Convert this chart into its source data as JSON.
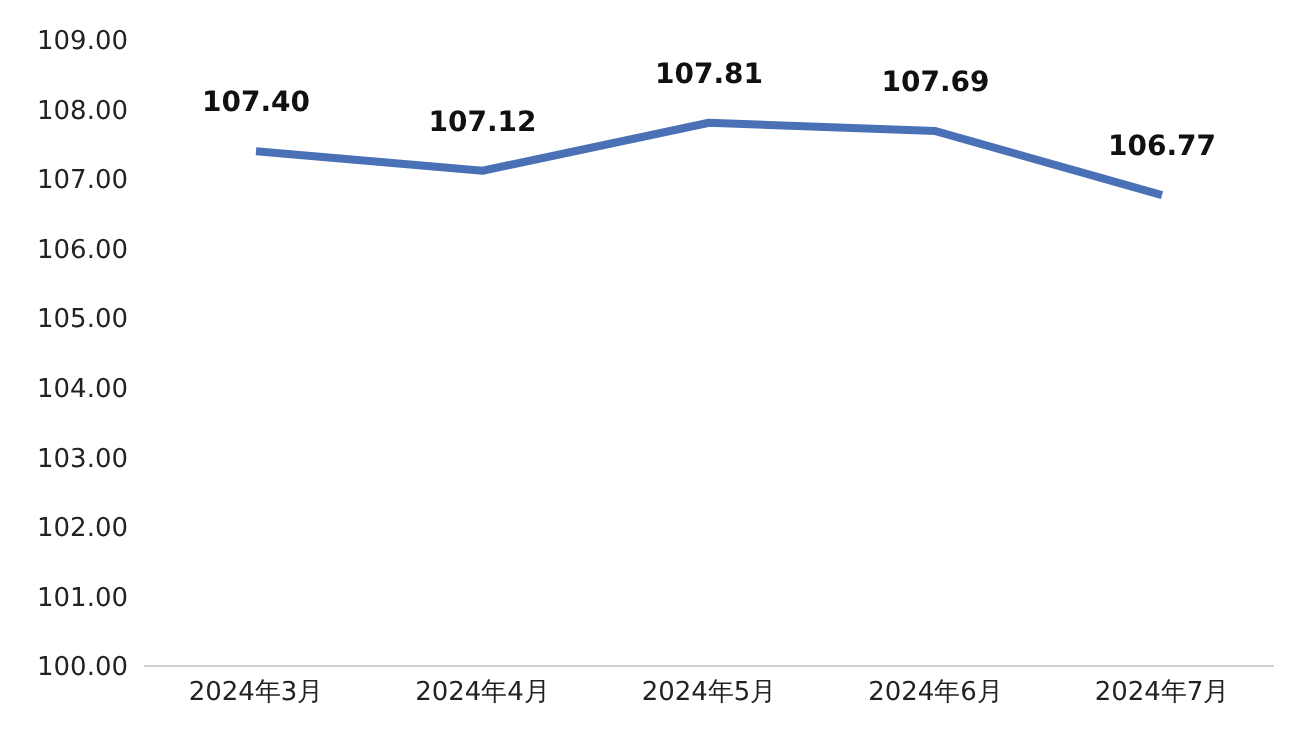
{
  "chart_data": {
    "type": "line",
    "categories": [
      "2024年3月",
      "2024年4月",
      "2024年5月",
      "2024年6月",
      "2024年7月"
    ],
    "series": [
      {
        "color": "#4a70b6",
        "values": [
          107.4,
          107.12,
          107.81,
          107.69,
          106.77
        ],
        "value_labels": [
          "107.40",
          "107.12",
          "107.81",
          "107.69",
          "106.77"
        ]
      }
    ],
    "ylim": [
      100,
      109
    ],
    "yticks": [
      {
        "value": 100,
        "label": "100.00"
      },
      {
        "value": 101,
        "label": "101.00"
      },
      {
        "value": 102,
        "label": "102.00"
      },
      {
        "value": 103,
        "label": "103.00"
      },
      {
        "value": 104,
        "label": "104.00"
      },
      {
        "value": 105,
        "label": "105.00"
      },
      {
        "value": 106,
        "label": "106.00"
      },
      {
        "value": 107,
        "label": "107.00"
      },
      {
        "value": 108,
        "label": "108.00"
      },
      {
        "value": 109,
        "label": "109.00"
      }
    ],
    "marker": "none",
    "line_style": "solid"
  }
}
